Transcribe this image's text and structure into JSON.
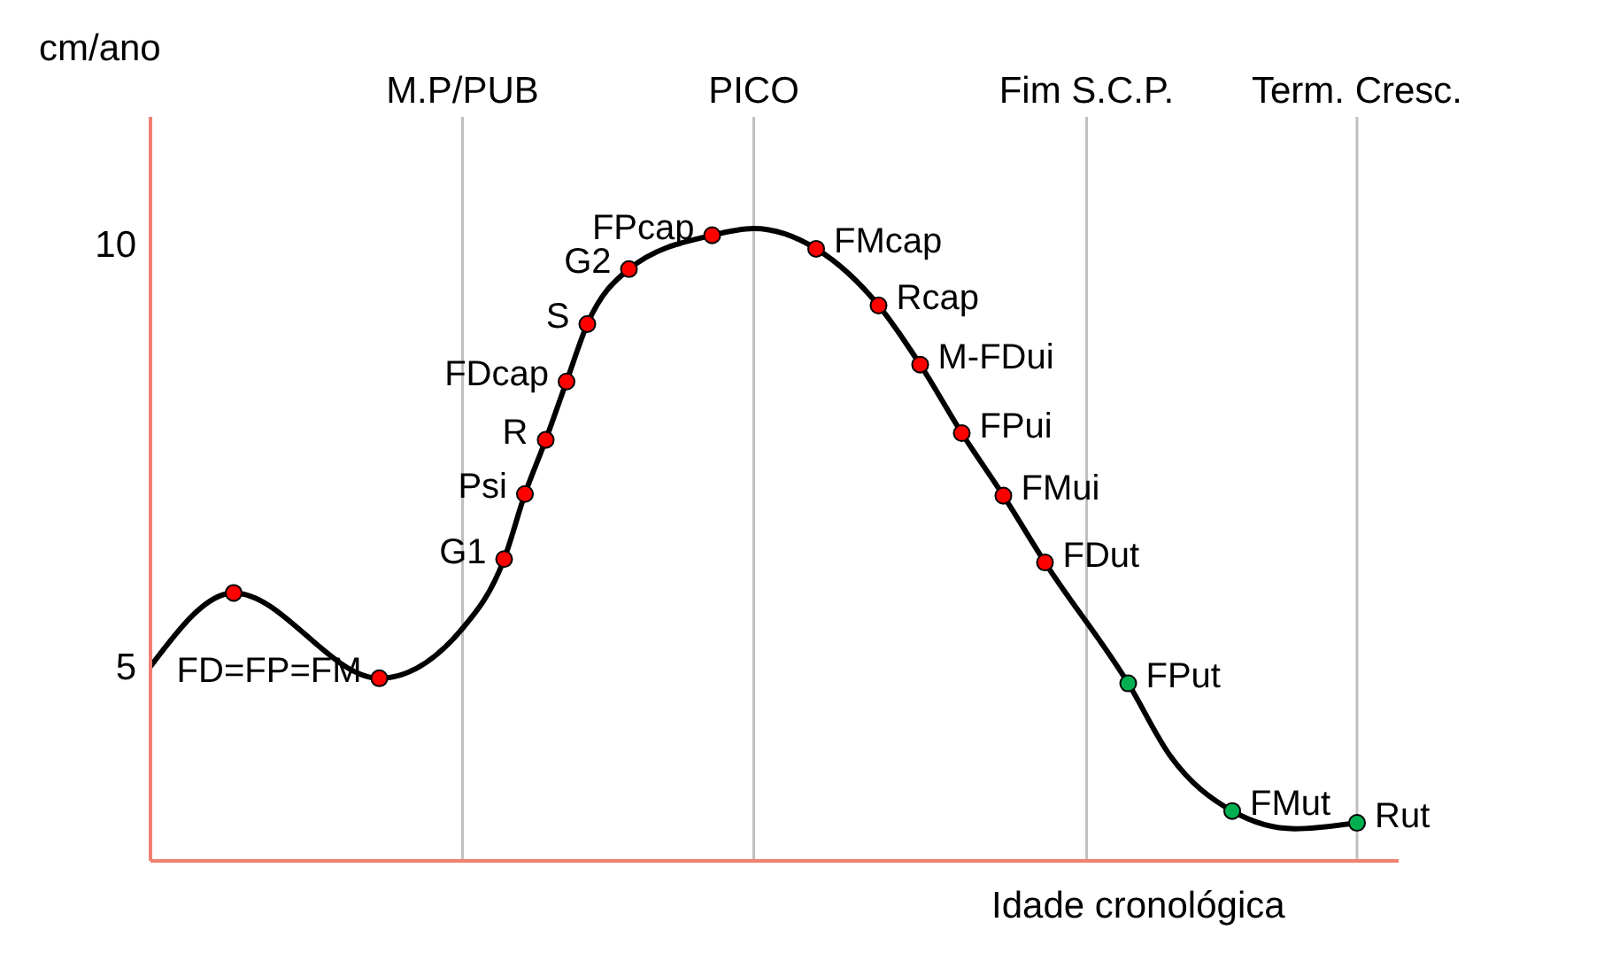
{
  "chart_data": {
    "type": "line",
    "ylabel": "cm/ano",
    "xlabel": "Idade cronológica",
    "ylim": [
      2.7,
      11.5
    ],
    "yticks": [
      5,
      10
    ],
    "grid": "x",
    "categories": [
      null,
      null,
      null,
      null,
      null,
      null,
      null,
      null,
      null,
      null,
      null,
      null,
      null,
      null,
      null,
      "M.P/PUB",
      null,
      null,
      null,
      null,
      null,
      null,
      null,
      null,
      null,
      null,
      null,
      null,
      null,
      "PICO",
      null,
      null,
      null,
      null,
      null,
      null,
      null,
      null,
      null,
      null,
      null,
      null,
      null,
      null,
      null,
      "Fim S.C.P.",
      null,
      null,
      null,
      null,
      null,
      null,
      null,
      null,
      null,
      null,
      null,
      null,
      "Term. Cresc.",
      null,
      null
    ],
    "series": [
      {
        "color": "#000000",
        "marker": "none",
        "values": [
          5.0,
          null,
          null,
          null,
          5.87,
          null,
          null,
          null,
          null,
          null,
          null,
          4.86,
          null,
          null,
          null,
          5.45,
          null,
          6.27,
          7.04,
          7.68,
          8.37,
          9.05,
          null,
          9.7,
          null,
          null,
          null,
          10.1,
          null,
          10.18,
          null,
          null,
          9.94,
          null,
          null,
          9.27,
          null,
          8.57,
          null,
          7.76,
          null,
          7.02,
          null,
          6.23,
          null,
          null,
          null,
          4.8,
          null,
          3.95,
          null,
          null,
          3.29,
          null,
          null,
          3.08,
          null,
          null,
          3.15,
          null,
          null
        ]
      },
      {
        "type": "scatter",
        "marker": "circle",
        "values": [
          null,
          null,
          null,
          null,
          5.87,
          null,
          null,
          null,
          null,
          null,
          null,
          4.86,
          null,
          null,
          null,
          null,
          null,
          6.27,
          7.04,
          7.68,
          8.37,
          9.05,
          null,
          9.7,
          null,
          null,
          null,
          10.1,
          null,
          null,
          null,
          null,
          9.94,
          null,
          null,
          9.27,
          null,
          8.57,
          null,
          7.76,
          null,
          7.02,
          null,
          6.23,
          null,
          null,
          null,
          4.8,
          null,
          null,
          null,
          null,
          3.29,
          null,
          null,
          null,
          null,
          null,
          3.15,
          null,
          null
        ],
        "colors": [
          null,
          null,
          null,
          null,
          "#ff0000",
          null,
          null,
          null,
          null,
          null,
          null,
          "#ff0000",
          null,
          null,
          null,
          null,
          null,
          "#ff0000",
          "#ff0000",
          "#ff0000",
          "#ff0000",
          "#ff0000",
          null,
          "#ff0000",
          null,
          null,
          null,
          "#ff0000",
          null,
          null,
          null,
          null,
          "#ff0000",
          null,
          null,
          "#ff0000",
          null,
          "#ff0000",
          null,
          "#ff0000",
          null,
          "#ff0000",
          null,
          "#ff0000",
          null,
          null,
          null,
          "#00b050",
          null,
          null,
          null,
          null,
          "#00b050",
          null,
          null,
          null,
          null,
          null,
          "#00b050",
          null,
          null
        ],
        "value_labels": [
          null,
          null,
          null,
          null,
          null,
          null,
          null,
          null,
          null,
          null,
          null,
          "FD=FP=FM",
          null,
          null,
          null,
          null,
          null,
          "G1",
          "Psi",
          "R",
          "FDcap",
          "S",
          null,
          "G2",
          null,
          null,
          null,
          "FPcap",
          null,
          null,
          null,
          null,
          "FMcap",
          null,
          null,
          "Rcap",
          null,
          "M-FDui",
          null,
          "FPui",
          null,
          "FMui",
          null,
          "FDut",
          null,
          null,
          null,
          "FPut",
          null,
          null,
          null,
          null,
          "FMut",
          null,
          null,
          null,
          null,
          null,
          "Rut",
          null,
          null
        ]
      }
    ]
  }
}
